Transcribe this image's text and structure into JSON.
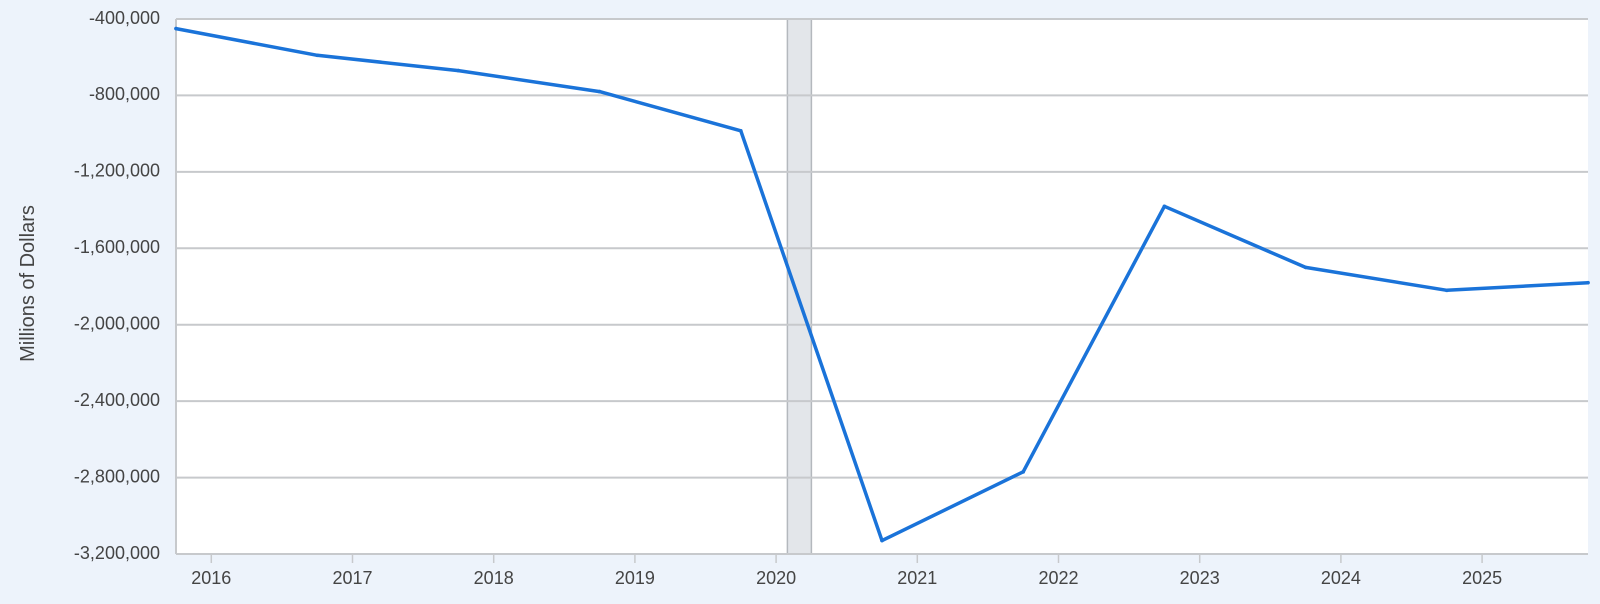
{
  "chart_data": {
    "type": "line",
    "title": "",
    "xlabel": "",
    "ylabel": "Millions of Dollars",
    "ylim": [
      -3200000,
      -400000
    ],
    "yticks": [
      -400000,
      -800000,
      -1200000,
      -1600000,
      -2000000,
      -2400000,
      -2800000,
      -3200000
    ],
    "ytick_labels": [
      "-400,000",
      "-800,000",
      "-1,200,000",
      "-1,600,000",
      "-2,000,000",
      "-2,400,000",
      "-2,800,000",
      "-3,200,000"
    ],
    "xlim": [
      2015.75,
      2025.75
    ],
    "xticks": [
      2016,
      2017,
      2018,
      2019,
      2020,
      2021,
      2022,
      2023,
      2024,
      2025
    ],
    "xtick_labels": [
      "2016",
      "2017",
      "2018",
      "2019",
      "2020",
      "2021",
      "2022",
      "2023",
      "2024",
      "2025"
    ],
    "grid": true,
    "recession": {
      "start": 2020.08,
      "end": 2020.25
    },
    "series": [
      {
        "x": [
          2015.75,
          2016.75,
          2017.75,
          2018.75,
          2019.75,
          2020.75,
          2021.75,
          2022.75,
          2023.75,
          2024.75,
          2025.75
        ],
        "values": [
          -450000,
          -590000,
          -670000,
          -780000,
          -985000,
          -3130000,
          -2770000,
          -1380000,
          -1700000,
          -1820000,
          -1780000
        ],
        "color": "#1a73d9"
      }
    ]
  }
}
